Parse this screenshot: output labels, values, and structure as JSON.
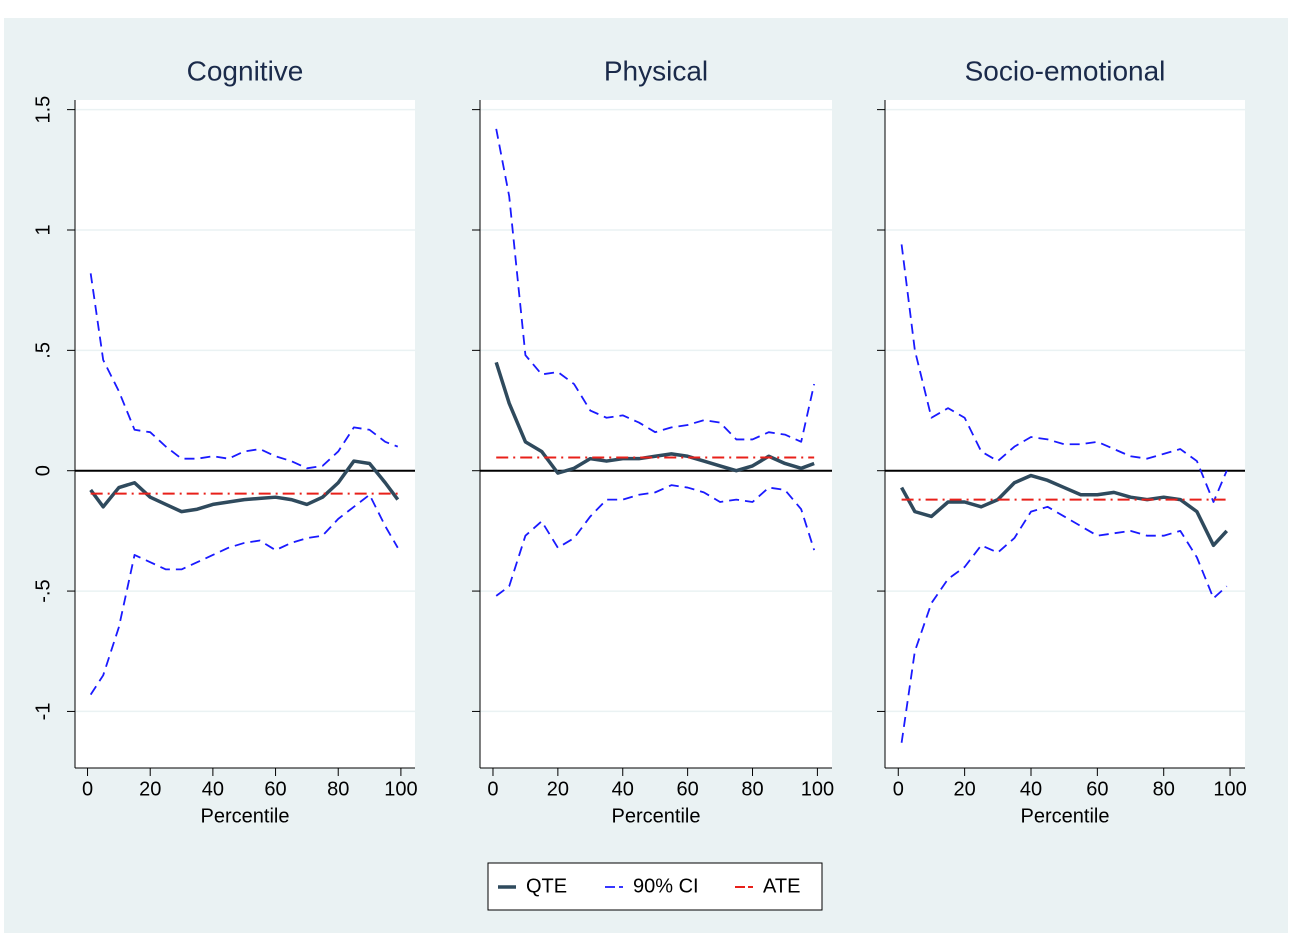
{
  "chart_data": [
    {
      "type": "line",
      "title": "Cognitive",
      "xlabel": "Percentile",
      "x": [
        1,
        5,
        10,
        15,
        20,
        25,
        30,
        35,
        40,
        45,
        50,
        55,
        60,
        65,
        70,
        75,
        80,
        85,
        90,
        95,
        99
      ],
      "xlim": [
        -4,
        104.5
      ],
      "xticks": [
        0,
        20,
        40,
        60,
        80,
        100
      ],
      "ylim": [
        -1.235,
        1.54
      ],
      "yticks": [
        {
          "value": -1,
          "label": "-1"
        },
        {
          "value": -0.5,
          "label": "-.5"
        },
        0,
        {
          "value": 0.5,
          "label": ".5"
        },
        1,
        1.5
      ],
      "show_ytick_labels": true,
      "hline": 0,
      "grid": true,
      "series": [
        {
          "name": "QTE",
          "color": "#2f4a5d",
          "values": [
            -0.08,
            -0.15,
            -0.07,
            -0.05,
            -0.11,
            -0.14,
            -0.17,
            -0.16,
            -0.14,
            -0.13,
            -0.12,
            -0.115,
            -0.11,
            -0.12,
            -0.14,
            -0.11,
            -0.05,
            0.04,
            0.03,
            -0.05,
            -0.12
          ]
        },
        {
          "name": "90% CI",
          "color": "#1a1aff",
          "upper": [
            0.82,
            0.46,
            0.33,
            0.17,
            0.16,
            0.1,
            0.05,
            0.05,
            0.06,
            0.05,
            0.08,
            0.09,
            0.06,
            0.04,
            0.01,
            0.02,
            0.08,
            0.18,
            0.17,
            0.12,
            0.1
          ],
          "lower": [
            -0.93,
            -0.85,
            -0.65,
            -0.35,
            -0.38,
            -0.41,
            -0.41,
            -0.38,
            -0.35,
            -0.32,
            -0.3,
            -0.29,
            -0.33,
            -0.3,
            -0.28,
            -0.27,
            -0.2,
            -0.15,
            -0.1,
            -0.23,
            -0.32
          ]
        },
        {
          "name": "ATE",
          "color": "#e8201a",
          "values": [
            -0.095,
            -0.095,
            -0.095,
            -0.095,
            -0.095,
            -0.095,
            -0.095,
            -0.095,
            -0.095,
            -0.095,
            -0.095,
            -0.095,
            -0.095,
            -0.095,
            -0.095,
            -0.095,
            -0.095,
            -0.095,
            -0.095,
            -0.095,
            -0.095
          ]
        }
      ]
    },
    {
      "type": "line",
      "title": "Physical",
      "xlabel": "Percentile",
      "x": [
        1,
        5,
        10,
        15,
        20,
        25,
        30,
        35,
        40,
        45,
        50,
        55,
        60,
        65,
        70,
        75,
        80,
        85,
        90,
        95,
        99
      ],
      "xlim": [
        -4,
        104.5
      ],
      "xticks": [
        0,
        20,
        40,
        60,
        80,
        100
      ],
      "ylim": [
        -1.235,
        1.54
      ],
      "yticks": [
        -1,
        -0.5,
        0,
        0.5,
        1,
        1.5
      ],
      "show_ytick_labels": false,
      "hline": 0,
      "grid": true,
      "series": [
        {
          "name": "QTE",
          "color": "#2f4a5d",
          "values": [
            0.45,
            0.28,
            0.12,
            0.08,
            -0.01,
            0.01,
            0.05,
            0.04,
            0.05,
            0.05,
            0.06,
            0.07,
            0.06,
            0.04,
            0.02,
            0.0,
            0.02,
            0.06,
            0.03,
            0.01,
            0.03
          ]
        },
        {
          "name": "90% CI",
          "color": "#1a1aff",
          "upper": [
            1.42,
            1.14,
            0.48,
            0.4,
            0.41,
            0.36,
            0.25,
            0.22,
            0.23,
            0.2,
            0.16,
            0.18,
            0.19,
            0.21,
            0.2,
            0.13,
            0.13,
            0.16,
            0.15,
            0.12,
            0.36
          ],
          "lower": [
            -0.52,
            -0.48,
            -0.27,
            -0.21,
            -0.32,
            -0.28,
            -0.19,
            -0.12,
            -0.12,
            -0.1,
            -0.09,
            -0.06,
            -0.07,
            -0.09,
            -0.13,
            -0.12,
            -0.13,
            -0.07,
            -0.08,
            -0.16,
            -0.33
          ]
        },
        {
          "name": "ATE",
          "color": "#e8201a",
          "values": [
            0.055,
            0.055,
            0.055,
            0.055,
            0.055,
            0.055,
            0.055,
            0.055,
            0.055,
            0.055,
            0.055,
            0.055,
            0.055,
            0.055,
            0.055,
            0.055,
            0.055,
            0.055,
            0.055,
            0.055,
            0.055
          ]
        }
      ]
    },
    {
      "type": "line",
      "title": "Socio-emotional",
      "xlabel": "Percentile",
      "x": [
        1,
        5,
        10,
        15,
        20,
        25,
        30,
        35,
        40,
        45,
        50,
        55,
        60,
        65,
        70,
        75,
        80,
        85,
        90,
        95,
        99
      ],
      "xlim": [
        -4,
        104.5
      ],
      "xticks": [
        0,
        20,
        40,
        60,
        80,
        100
      ],
      "ylim": [
        -1.235,
        1.54
      ],
      "yticks": [
        -1,
        -0.5,
        0,
        0.5,
        1,
        1.5
      ],
      "show_ytick_labels": false,
      "hline": 0,
      "grid": true,
      "series": [
        {
          "name": "QTE",
          "color": "#2f4a5d",
          "values": [
            -0.07,
            -0.17,
            -0.19,
            -0.13,
            -0.13,
            -0.15,
            -0.12,
            -0.05,
            -0.02,
            -0.04,
            -0.07,
            -0.1,
            -0.1,
            -0.09,
            -0.11,
            -0.12,
            -0.11,
            -0.12,
            -0.17,
            -0.31,
            -0.25
          ]
        },
        {
          "name": "90% CI",
          "color": "#1a1aff",
          "upper": [
            0.94,
            0.5,
            0.22,
            0.26,
            0.22,
            0.08,
            0.04,
            0.1,
            0.14,
            0.13,
            0.11,
            0.11,
            0.12,
            0.09,
            0.06,
            0.05,
            0.07,
            0.09,
            0.04,
            -0.13,
            0.0
          ],
          "lower": [
            -1.13,
            -0.75,
            -0.55,
            -0.45,
            -0.4,
            -0.31,
            -0.34,
            -0.28,
            -0.17,
            -0.15,
            -0.19,
            -0.23,
            -0.27,
            -0.26,
            -0.25,
            -0.27,
            -0.27,
            -0.25,
            -0.36,
            -0.53,
            -0.48
          ]
        },
        {
          "name": "ATE",
          "color": "#e8201a",
          "values": [
            -0.12,
            -0.12,
            -0.12,
            -0.12,
            -0.12,
            -0.12,
            -0.12,
            -0.12,
            -0.12,
            -0.12,
            -0.12,
            -0.12,
            -0.12,
            -0.12,
            -0.12,
            -0.12,
            -0.12,
            -0.12,
            -0.12,
            -0.12,
            -0.12
          ]
        }
      ]
    }
  ]
}
